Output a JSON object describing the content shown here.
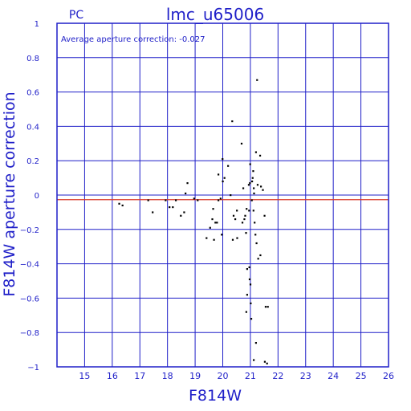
{
  "chart_data": {
    "type": "scatter",
    "title": "lmc_u65006",
    "camera_label": "PC",
    "annotation": "Average aperture correction:  -0.027",
    "xlabel": "F814W",
    "ylabel": "F814W aperture correction",
    "xlim": [
      14,
      26
    ],
    "ylim": [
      -1,
      1
    ],
    "x_ticks": [
      15,
      16,
      17,
      18,
      19,
      20,
      21,
      22,
      23,
      24,
      25,
      26
    ],
    "y_ticks": [
      1,
      0.8,
      0.6,
      0.4,
      0.2,
      0,
      -0.2,
      -0.4,
      -0.6,
      -0.8,
      -1
    ],
    "x_tick_labels": [
      "15",
      "16",
      "17",
      "18",
      "19",
      "20",
      "21",
      "22",
      "23",
      "24",
      "25",
      "26"
    ],
    "y_tick_labels": [
      "1",
      "0.8",
      "0.6",
      "0.4",
      "0.2",
      "0",
      "−0.2",
      "−0.4",
      "−0.6",
      "−0.8",
      "−1"
    ],
    "grid": true,
    "reference_line": {
      "y": -0.027
    },
    "colors": {
      "axes": "#1f1fc8",
      "reference_line": "#d93a2a",
      "points": "#000000"
    },
    "points": [
      [
        16.25,
        -0.05
      ],
      [
        16.37,
        -0.06
      ],
      [
        17.3,
        -0.03
      ],
      [
        17.46,
        -0.1
      ],
      [
        17.93,
        -0.03
      ],
      [
        18.07,
        -0.07
      ],
      [
        18.19,
        -0.07
      ],
      [
        18.3,
        -0.03
      ],
      [
        18.48,
        -0.12
      ],
      [
        18.6,
        -0.1
      ],
      [
        18.65,
        0.01
      ],
      [
        18.72,
        0.07
      ],
      [
        18.96,
        -0.02
      ],
      [
        19.09,
        -0.03
      ],
      [
        19.41,
        -0.25
      ],
      [
        19.54,
        -0.19
      ],
      [
        19.62,
        -0.14
      ],
      [
        19.65,
        -0.08
      ],
      [
        19.68,
        -0.26
      ],
      [
        19.73,
        -0.16
      ],
      [
        19.79,
        -0.16
      ],
      [
        19.84,
        0.12
      ],
      [
        19.84,
        -0.03
      ],
      [
        19.92,
        -0.02
      ],
      [
        19.96,
        -0.23
      ],
      [
        19.99,
        0.21
      ],
      [
        20.0,
        0.08
      ],
      [
        20.06,
        0.1
      ],
      [
        20.19,
        0.17
      ],
      [
        20.28,
        0.0
      ],
      [
        20.34,
        0.43
      ],
      [
        20.36,
        -0.26
      ],
      [
        20.39,
        -0.12
      ],
      [
        20.45,
        -0.14
      ],
      [
        20.51,
        -0.09
      ],
      [
        20.52,
        -0.25
      ],
      [
        20.68,
        0.3
      ],
      [
        20.71,
        -0.16
      ],
      [
        20.74,
        0.04
      ],
      [
        20.78,
        -0.14
      ],
      [
        20.81,
        -0.12
      ],
      [
        20.84,
        -0.22
      ],
      [
        20.86,
        -0.08
      ],
      [
        20.88,
        -0.43
      ],
      [
        20.88,
        -0.58
      ],
      [
        20.94,
        0.06
      ],
      [
        20.95,
        -0.09
      ],
      [
        20.96,
        -0.42
      ],
      [
        20.97,
        -0.49
      ],
      [
        20.98,
        0.07
      ],
      [
        20.99,
        0.18
      ],
      [
        21.0,
        -0.52
      ],
      [
        21.01,
        -0.63
      ],
      [
        21.03,
        -0.72
      ],
      [
        21.05,
        -0.03
      ],
      [
        21.06,
        0.08
      ],
      [
        21.08,
        0.1
      ],
      [
        21.1,
        0.14
      ],
      [
        21.11,
        -0.09
      ],
      [
        21.12,
        0.04
      ],
      [
        21.13,
        0.01
      ],
      [
        21.15,
        -0.16
      ],
      [
        21.18,
        -0.23
      ],
      [
        21.2,
        0.25
      ],
      [
        21.22,
        -0.28
      ],
      [
        21.24,
        0.67
      ],
      [
        21.26,
        0.06
      ],
      [
        21.28,
        -0.37
      ],
      [
        21.35,
        0.23
      ],
      [
        21.36,
        -0.35
      ],
      [
        21.38,
        0.05
      ],
      [
        21.45,
        0.03
      ],
      [
        21.51,
        -0.12
      ],
      [
        21.55,
        -0.65
      ],
      [
        21.63,
        -0.65
      ],
      [
        20.85,
        -0.68
      ],
      [
        21.12,
        -0.96
      ],
      [
        21.2,
        -0.86
      ],
      [
        21.52,
        -0.97
      ],
      [
        21.6,
        -0.98
      ]
    ]
  }
}
